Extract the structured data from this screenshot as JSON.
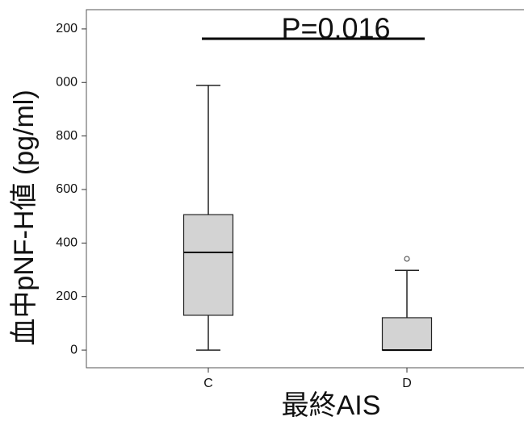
{
  "chart_data": {
    "type": "box",
    "title": "P=0.016",
    "x_label": "最終AIS",
    "y_label": "血中pNF-H値 (pg/ml)",
    "categories": [
      "C",
      "D"
    ],
    "boxes": [
      {
        "whislo": 0,
        "q1": 130,
        "med": 365,
        "q3": 506,
        "whishi": 989
      },
      {
        "whislo": 0,
        "q1": 0,
        "med": 0,
        "q3": 121,
        "whishi": 298,
        "fliers": [
          341
        ]
      }
    ],
    "color": "#d3d3d3",
    "ylim": [
      -66,
      1272
    ],
    "yticks": [
      0,
      200,
      400,
      600,
      800,
      {
        "value": 1000,
        "label": "000"
      },
      {
        "value": 1200,
        "label": "200"
      }
    ]
  }
}
